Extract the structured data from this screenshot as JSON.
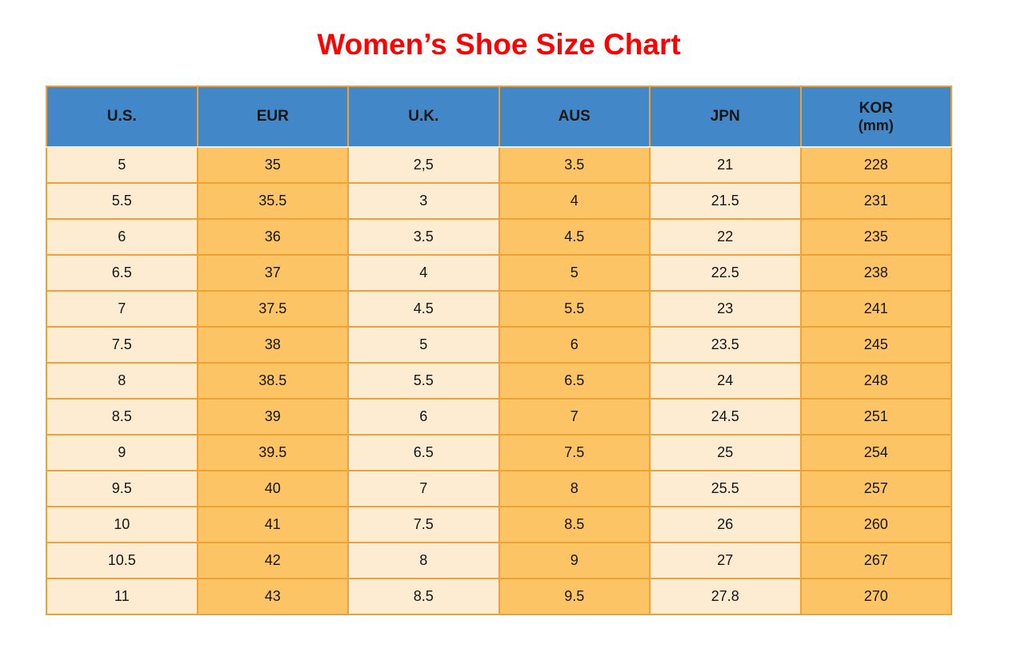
{
  "title": "Women’s Shoe Size Chart",
  "colors": {
    "title_red": "#ff0000",
    "header_blue": "#4288c8",
    "cell_cream": "#fdebd2",
    "cell_orange": "#fdc466",
    "border_orange": "#efa135"
  },
  "chart_data": {
    "type": "table",
    "title": "Women’s Shoe Size Chart",
    "columns": [
      {
        "label": "U.S.",
        "sub": ""
      },
      {
        "label": "EUR",
        "sub": ""
      },
      {
        "label": "U.K.",
        "sub": ""
      },
      {
        "label": "AUS",
        "sub": ""
      },
      {
        "label": "JPN",
        "sub": ""
      },
      {
        "label": "KOR",
        "sub": "(mm)"
      }
    ],
    "rows": [
      [
        "5",
        "35",
        "2,5",
        "3.5",
        "21",
        "228"
      ],
      [
        "5.5",
        "35.5",
        "3",
        "4",
        "21.5",
        "231"
      ],
      [
        "6",
        "36",
        "3.5",
        "4.5",
        "22",
        "235"
      ],
      [
        "6.5",
        "37",
        "4",
        "5",
        "22.5",
        "238"
      ],
      [
        "7",
        "37.5",
        "4.5",
        "5.5",
        "23",
        "241"
      ],
      [
        "7.5",
        "38",
        "5",
        "6",
        "23.5",
        "245"
      ],
      [
        "8",
        "38.5",
        "5.5",
        "6.5",
        "24",
        "248"
      ],
      [
        "8.5",
        "39",
        "6",
        "7",
        "24.5",
        "251"
      ],
      [
        "9",
        "39.5",
        "6.5",
        "7.5",
        "25",
        "254"
      ],
      [
        "9.5",
        "40",
        "7",
        "8",
        "25.5",
        "257"
      ],
      [
        "10",
        "41",
        "7.5",
        "8.5",
        "26",
        "260"
      ],
      [
        "10.5",
        "42",
        "8",
        "9",
        "27",
        "267"
      ],
      [
        "11",
        "43",
        "8.5",
        "9.5",
        "27.8",
        "270"
      ]
    ]
  }
}
